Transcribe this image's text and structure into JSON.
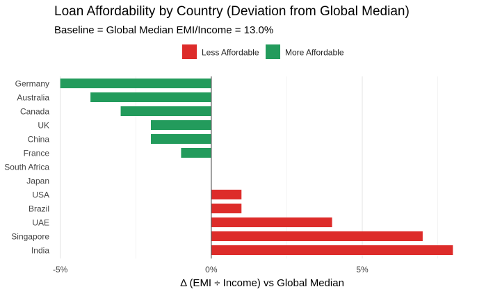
{
  "chart_data": {
    "type": "bar",
    "orientation": "horizontal",
    "title": "Loan Affordability by Country (Deviation from Global Median)",
    "subtitle": "Baseline = Global Median EMI/Income = 13.0%",
    "xlabel": "Δ (EMI ÷ Income) vs Global Median",
    "ylabel": "",
    "xlim": [
      -5.2,
      8.2
    ],
    "x_ticks": [
      -5,
      0,
      5
    ],
    "x_tick_labels": [
      "-5%",
      "0%",
      "5%"
    ],
    "grid": true,
    "legend_position": "top",
    "legend": [
      {
        "label": "Less Affordable",
        "color": "#dd2c2a"
      },
      {
        "label": "More Affordable",
        "color": "#239b5c"
      }
    ],
    "categories": [
      "Germany",
      "Australia",
      "Canada",
      "UK",
      "China",
      "France",
      "South Africa",
      "Japan",
      "USA",
      "Brazil",
      "UAE",
      "Singapore",
      "India"
    ],
    "values": [
      -5,
      -4,
      -3,
      -2,
      -2,
      -1,
      0,
      0,
      1,
      1,
      4,
      7,
      8
    ]
  }
}
